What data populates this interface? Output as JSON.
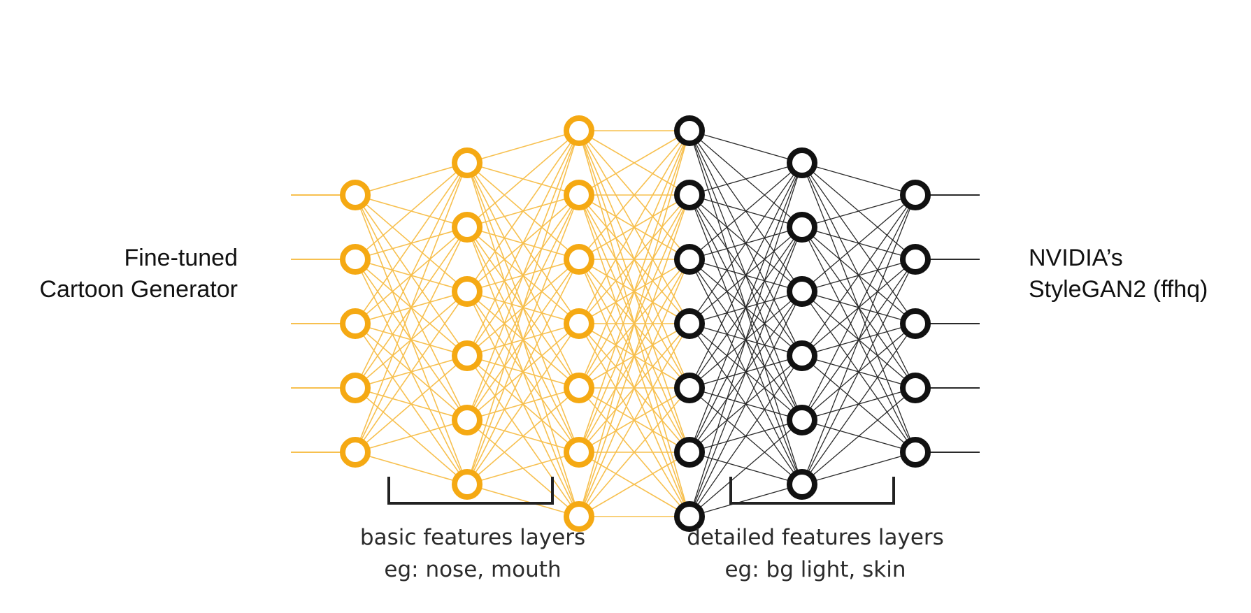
{
  "left_label": {
    "line1": "Fine-tuned",
    "line2": "Cartoon Generator"
  },
  "right_label": {
    "line1": "NVIDIA’s",
    "line2": "StyleGAN2 (ffhq)"
  },
  "captions": {
    "basic": {
      "line1": "basic features layers",
      "line2": "eg: nose, mouth"
    },
    "detailed": {
      "line1": "detailed features layers",
      "line2": "eg: bg light, skin"
    }
  },
  "colors": {
    "basic_layers": "#f5a913",
    "basic_edges": "#f7c04f",
    "detailed_layers": "#111111",
    "detailed_edges": "#2a2a2a",
    "bracket": "#222222"
  },
  "network": {
    "layer_sizes": [
      5,
      6,
      7,
      7,
      6,
      5
    ],
    "basic_layer_count": 3
  }
}
